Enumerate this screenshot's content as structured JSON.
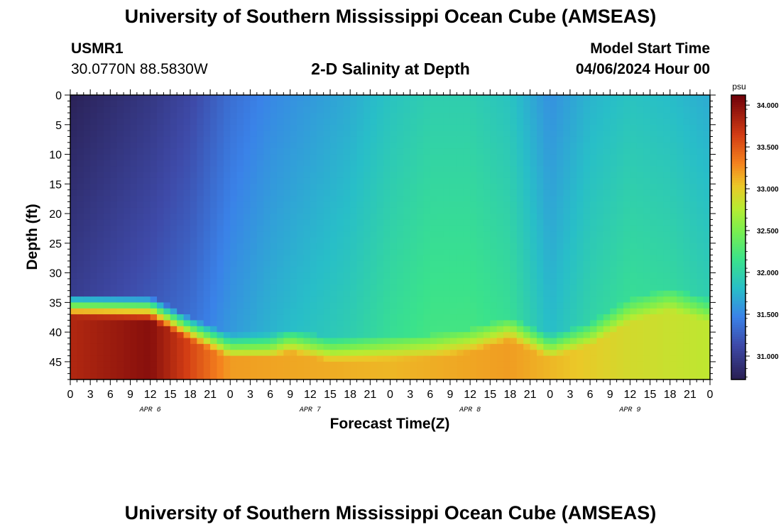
{
  "header": {
    "title": "University of Southern Mississippi Ocean Cube (AMSEAS)",
    "station": "USMR1",
    "coords": "30.0770N  88.5830W",
    "product": "2-D Salinity at Depth",
    "start_label": "Model Start Time",
    "start_value": "04/06/2024 Hour 00"
  },
  "footer": {
    "title": "University of Southern Mississippi Ocean Cube (AMSEAS)"
  },
  "chart_data": {
    "type": "heatmap",
    "title": "2-D Salinity at Depth",
    "xlabel": "Forecast Time(Z)",
    "ylabel": "Depth (ft)",
    "xlim": [
      0,
      96
    ],
    "ylim": [
      48,
      0
    ],
    "y_ticks": [
      0,
      5,
      10,
      15,
      20,
      25,
      30,
      35,
      40,
      45
    ],
    "y_tick_labels": [
      "0",
      "5",
      "10",
      "15",
      "20",
      "25",
      "30",
      "35",
      "40",
      "45"
    ],
    "x_ticks": [
      0,
      3,
      6,
      9,
      12,
      15,
      18,
      21,
      24,
      27,
      30,
      33,
      36,
      39,
      42,
      45,
      48,
      51,
      54,
      57,
      60,
      63,
      66,
      69,
      72,
      75,
      78,
      81,
      84,
      87,
      90,
      93,
      96
    ],
    "x_tick_labels": [
      "0",
      "3",
      "6",
      "9",
      "12",
      "15",
      "18",
      "21",
      "0",
      "3",
      "6",
      "9",
      "12",
      "15",
      "18",
      "21",
      "0",
      "3",
      "6",
      "9",
      "12",
      "15",
      "18",
      "21",
      "0",
      "3",
      "6",
      "9",
      "12",
      "15",
      "18",
      "21",
      "0"
    ],
    "day_labels": [
      {
        "x": 12,
        "label": "APR 6"
      },
      {
        "x": 36,
        "label": "APR 7"
      },
      {
        "x": 60,
        "label": "APR 8"
      },
      {
        "x": 84,
        "label": "APR 9"
      }
    ],
    "colorbar": {
      "unit": "psu",
      "min": 30.72,
      "max": 34.12,
      "ticks": [
        31.0,
        31.5,
        32.0,
        32.5,
        33.0,
        33.5,
        34.0
      ],
      "tick_labels": [
        "31.000",
        "31.500",
        "32.000",
        "32.500",
        "33.000",
        "33.500",
        "34.000"
      ]
    },
    "halocline_depth": [
      {
        "x": 0,
        "depth": 35
      },
      {
        "x": 12,
        "depth": 35.5
      },
      {
        "x": 18,
        "depth": 39
      },
      {
        "x": 24,
        "depth": 42
      },
      {
        "x": 30,
        "depth": 42
      },
      {
        "x": 33,
        "depth": 41
      },
      {
        "x": 39,
        "depth": 42.5
      },
      {
        "x": 54,
        "depth": 42
      },
      {
        "x": 60,
        "depth": 41
      },
      {
        "x": 66,
        "depth": 39
      },
      {
        "x": 72,
        "depth": 42
      },
      {
        "x": 78,
        "depth": 40
      },
      {
        "x": 84,
        "depth": 36
      },
      {
        "x": 90,
        "depth": 34
      },
      {
        "x": 96,
        "depth": 36
      }
    ],
    "surface_salinity": [
      {
        "x": 0,
        "value": 30.75
      },
      {
        "x": 12,
        "value": 30.95
      },
      {
        "x": 18,
        "value": 31.1
      },
      {
        "x": 24,
        "value": 31.35
      },
      {
        "x": 30,
        "value": 31.5
      },
      {
        "x": 36,
        "value": 31.6
      },
      {
        "x": 42,
        "value": 31.7
      },
      {
        "x": 48,
        "value": 31.85
      },
      {
        "x": 54,
        "value": 31.95
      },
      {
        "x": 60,
        "value": 31.95
      },
      {
        "x": 66,
        "value": 31.85
      },
      {
        "x": 72,
        "value": 31.55
      },
      {
        "x": 78,
        "value": 31.75
      },
      {
        "x": 84,
        "value": 31.85
      },
      {
        "x": 90,
        "value": 31.8
      },
      {
        "x": 96,
        "value": 31.7
      }
    ],
    "bottom_salinity": [
      {
        "x": 0,
        "value": 33.8
      },
      {
        "x": 12,
        "value": 34.0
      },
      {
        "x": 24,
        "value": 33.2
      },
      {
        "x": 48,
        "value": 33.1
      },
      {
        "x": 66,
        "value": 33.2
      },
      {
        "x": 84,
        "value": 32.9
      },
      {
        "x": 96,
        "value": 32.8
      }
    ]
  },
  "colors": {
    "background": "#ffffff",
    "axis": "#000000"
  }
}
